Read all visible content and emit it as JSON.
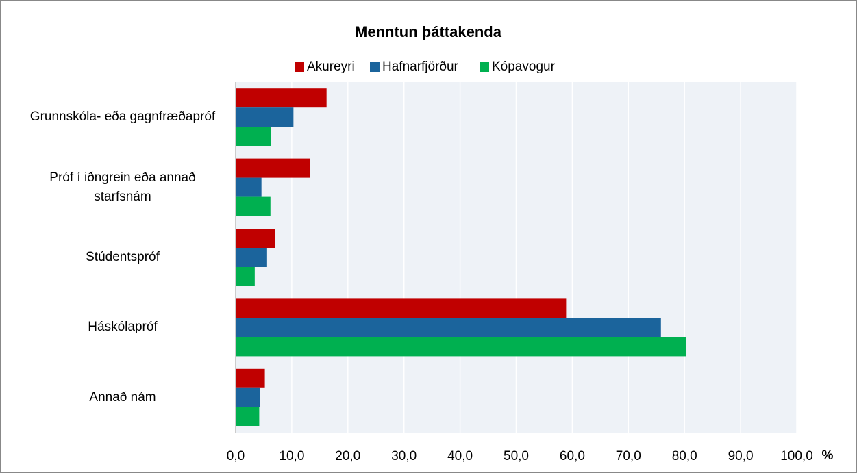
{
  "chart_data": {
    "type": "bar",
    "orientation": "horizontal",
    "title": "Menntun þáttakenda",
    "categories": [
      "Grunnskóla- eða gagnfræðapróf",
      "Próf í iðngrein eða annað starfsnám",
      "Stúdentspróf",
      "Háskólapróf",
      "Annað nám"
    ],
    "series": [
      {
        "name": "Akureyri",
        "color": "#c00000",
        "values": [
          16.2,
          13.3,
          7.0,
          58.9,
          5.2
        ]
      },
      {
        "name": "Hafnarfjörður",
        "color": "#1b649c",
        "values": [
          10.3,
          4.6,
          5.6,
          75.8,
          4.3
        ]
      },
      {
        "name": "Kópavogur",
        "color": "#00b050",
        "values": [
          6.3,
          6.2,
          3.4,
          80.3,
          4.2
        ]
      }
    ],
    "xlabel": "%",
    "xlim": [
      0,
      100
    ],
    "xticks": [
      {
        "value": 0,
        "label": "0,0"
      },
      {
        "value": 10,
        "label": "10,0"
      },
      {
        "value": 20,
        "label": "20,0"
      },
      {
        "value": 30,
        "label": "30,0"
      },
      {
        "value": 40,
        "label": "40,0"
      },
      {
        "value": 50,
        "label": "50,0"
      },
      {
        "value": 60,
        "label": "60,0"
      },
      {
        "value": 70,
        "label": "70,0"
      },
      {
        "value": 80,
        "label": "80,0"
      },
      {
        "value": 90,
        "label": "90,0"
      },
      {
        "value": 100,
        "label": "100,0"
      }
    ],
    "grid": true,
    "legend": "top"
  }
}
